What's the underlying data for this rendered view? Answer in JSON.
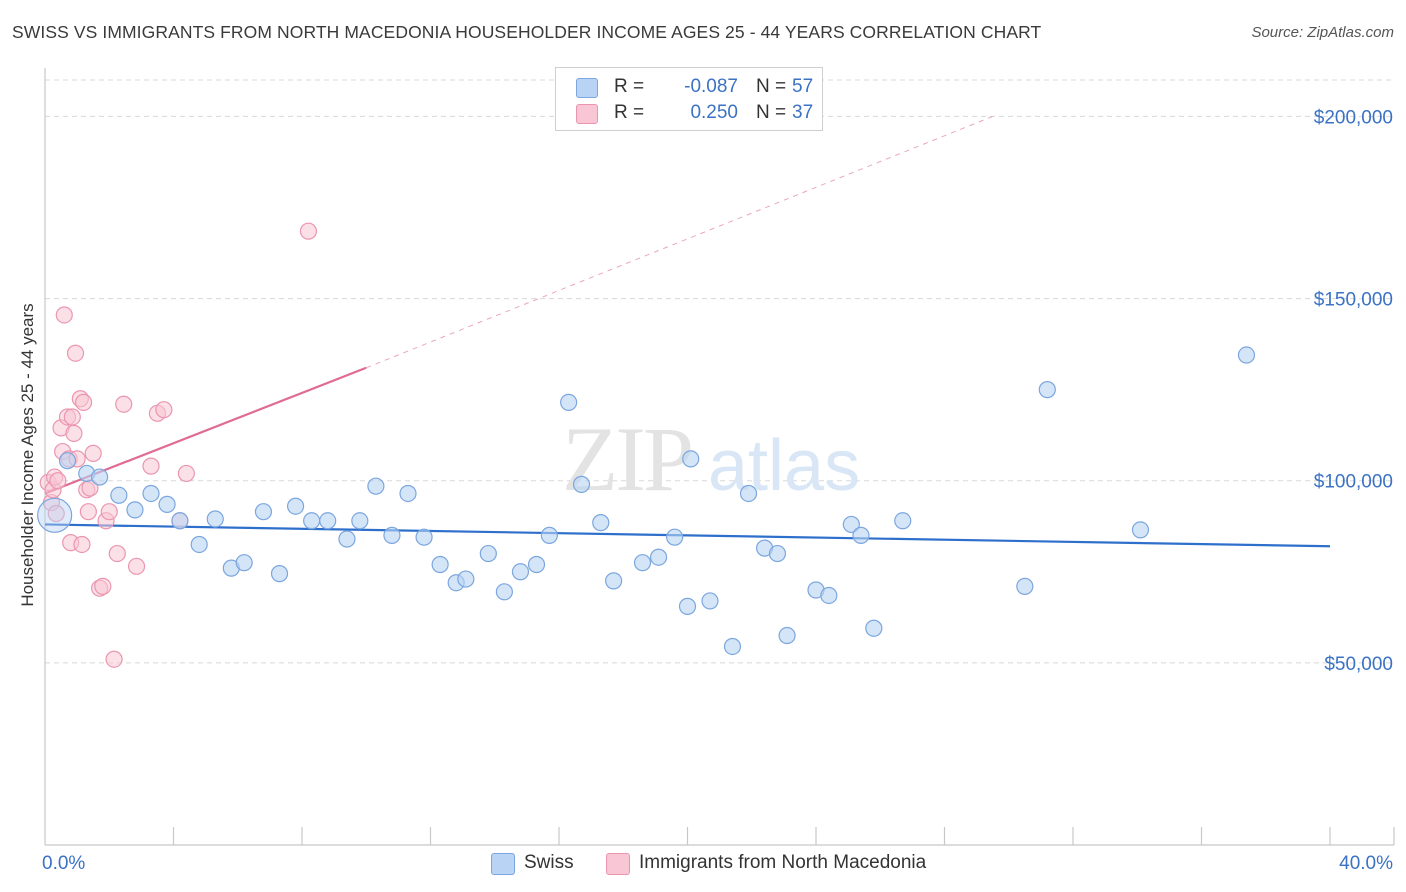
{
  "title": "SWISS VS IMMIGRANTS FROM NORTH MACEDONIA HOUSEHOLDER INCOME AGES 25 - 44 YEARS CORRELATION CHART",
  "source": "Source: ZipAtlas.com",
  "watermark": {
    "zip": "ZIP",
    "atlas": "atlas"
  },
  "legend": {
    "rows": [
      {
        "r_label": "R =",
        "r_value": "-0.087",
        "n_label": "N =",
        "n_value": "57"
      },
      {
        "r_label": "R =",
        "r_value": "0.250",
        "n_label": "N =",
        "n_value": "37"
      }
    ]
  },
  "bottom_legend": {
    "swiss": "Swiss",
    "macedonia": "Immigrants from North Macedonia"
  },
  "colors": {
    "swiss_fill": "#b9d3f4",
    "swiss_stroke": "#7ba6de",
    "swiss_line": "#2f6fcc",
    "mac_fill": "#f8c6d4",
    "mac_stroke": "#eb96b0",
    "mac_line": "#e06b95",
    "grid": "#d8d8d8",
    "axis_text": "#3b72c4"
  },
  "chart_data": {
    "type": "scatter",
    "title": "SWISS VS IMMIGRANTS FROM NORTH MACEDONIA HOUSEHOLDER INCOME AGES 25 - 44 YEARS CORRELATION CHART",
    "xlabel": "",
    "ylabel": "Householder Income Ages 25 - 44 years",
    "xlim": [
      0,
      40
    ],
    "ylim": [
      0,
      210000
    ],
    "y_ticks": [
      {
        "value": 50000,
        "label": "$50,000"
      },
      {
        "value": 100000,
        "label": "$100,000"
      },
      {
        "value": 150000,
        "label": "$150,000"
      },
      {
        "value": 200000,
        "label": "$200,000"
      }
    ],
    "x_tick_labels": [
      {
        "value": 0,
        "label": "0.0%"
      },
      {
        "value": 40,
        "label": "40.0%"
      }
    ],
    "x_minor_ticks": [
      4,
      8,
      12,
      16,
      20,
      24,
      28,
      32,
      36
    ],
    "series": [
      {
        "name": "Swiss",
        "r": -0.087,
        "n": 57,
        "trend": {
          "x0": 0,
          "y0": 88000,
          "x1": 40,
          "y1": 82000
        },
        "points": [
          {
            "x": 0.3,
            "y": 90500,
            "big": true
          },
          {
            "x": 0.7,
            "y": 105500
          },
          {
            "x": 1.3,
            "y": 102000
          },
          {
            "x": 1.7,
            "y": 101000
          },
          {
            "x": 2.3,
            "y": 96000
          },
          {
            "x": 2.8,
            "y": 92000
          },
          {
            "x": 3.3,
            "y": 96500
          },
          {
            "x": 3.8,
            "y": 93500
          },
          {
            "x": 4.2,
            "y": 89000
          },
          {
            "x": 4.8,
            "y": 82500
          },
          {
            "x": 5.3,
            "y": 89500
          },
          {
            "x": 5.8,
            "y": 76000
          },
          {
            "x": 6.2,
            "y": 77500
          },
          {
            "x": 6.8,
            "y": 91500
          },
          {
            "x": 7.3,
            "y": 74500
          },
          {
            "x": 7.8,
            "y": 93000
          },
          {
            "x": 8.3,
            "y": 89000
          },
          {
            "x": 8.8,
            "y": 89000
          },
          {
            "x": 9.4,
            "y": 84000
          },
          {
            "x": 9.8,
            "y": 89000
          },
          {
            "x": 10.3,
            "y": 98500
          },
          {
            "x": 10.8,
            "y": 85000
          },
          {
            "x": 11.3,
            "y": 96500
          },
          {
            "x": 11.8,
            "y": 84500
          },
          {
            "x": 12.3,
            "y": 77000
          },
          {
            "x": 12.8,
            "y": 72000
          },
          {
            "x": 13.1,
            "y": 73000
          },
          {
            "x": 13.8,
            "y": 80000
          },
          {
            "x": 14.3,
            "y": 69500
          },
          {
            "x": 14.8,
            "y": 75000
          },
          {
            "x": 15.3,
            "y": 77000
          },
          {
            "x": 15.7,
            "y": 85000
          },
          {
            "x": 16.3,
            "y": 121500
          },
          {
            "x": 16.7,
            "y": 99000
          },
          {
            "x": 17.3,
            "y": 88500
          },
          {
            "x": 17.7,
            "y": 72500
          },
          {
            "x": 18.6,
            "y": 77500
          },
          {
            "x": 19.1,
            "y": 79000
          },
          {
            "x": 19.6,
            "y": 84500
          },
          {
            "x": 20.0,
            "y": 65500
          },
          {
            "x": 20.1,
            "y": 106000
          },
          {
            "x": 20.7,
            "y": 67000
          },
          {
            "x": 21.4,
            "y": 54500
          },
          {
            "x": 21.9,
            "y": 96500
          },
          {
            "x": 22.4,
            "y": 81500
          },
          {
            "x": 22.8,
            "y": 80000
          },
          {
            "x": 23.1,
            "y": 57500
          },
          {
            "x": 24.0,
            "y": 70000
          },
          {
            "x": 24.4,
            "y": 68500
          },
          {
            "x": 25.1,
            "y": 88000
          },
          {
            "x": 25.4,
            "y": 85000
          },
          {
            "x": 25.8,
            "y": 59500
          },
          {
            "x": 26.7,
            "y": 89000
          },
          {
            "x": 30.5,
            "y": 71000
          },
          {
            "x": 31.2,
            "y": 125000
          },
          {
            "x": 34.1,
            "y": 86500
          },
          {
            "x": 37.4,
            "y": 134500
          }
        ]
      },
      {
        "name": "Immigrants from North Macedonia",
        "r": 0.25,
        "n": 37,
        "trend": {
          "x0": 0,
          "y0": 96500,
          "x1": 10,
          "y1": 131000,
          "dashed_to_x": 29.5,
          "dashed_to_y": 200000
        },
        "points": [
          {
            "x": 0.1,
            "y": 99500
          },
          {
            "x": 0.2,
            "y": 94000
          },
          {
            "x": 0.25,
            "y": 97500
          },
          {
            "x": 0.3,
            "y": 101000
          },
          {
            "x": 0.35,
            "y": 91000
          },
          {
            "x": 0.4,
            "y": 100000
          },
          {
            "x": 0.5,
            "y": 114500
          },
          {
            "x": 0.55,
            "y": 108000
          },
          {
            "x": 0.6,
            "y": 145500
          },
          {
            "x": 0.7,
            "y": 117500
          },
          {
            "x": 0.75,
            "y": 106000
          },
          {
            "x": 0.8,
            "y": 83000
          },
          {
            "x": 0.85,
            "y": 117500
          },
          {
            "x": 0.9,
            "y": 113000
          },
          {
            "x": 0.95,
            "y": 135000
          },
          {
            "x": 1.0,
            "y": 106000
          },
          {
            "x": 1.1,
            "y": 122500
          },
          {
            "x": 1.15,
            "y": 82500
          },
          {
            "x": 1.2,
            "y": 121500
          },
          {
            "x": 1.3,
            "y": 97500
          },
          {
            "x": 1.35,
            "y": 91500
          },
          {
            "x": 1.4,
            "y": 98000
          },
          {
            "x": 1.5,
            "y": 107500
          },
          {
            "x": 1.7,
            "y": 70500
          },
          {
            "x": 1.8,
            "y": 71000
          },
          {
            "x": 1.9,
            "y": 89000
          },
          {
            "x": 2.0,
            "y": 91500
          },
          {
            "x": 2.15,
            "y": 51000
          },
          {
            "x": 2.25,
            "y": 80000
          },
          {
            "x": 2.45,
            "y": 121000
          },
          {
            "x": 2.85,
            "y": 76500
          },
          {
            "x": 3.3,
            "y": 104000
          },
          {
            "x": 3.5,
            "y": 118500
          },
          {
            "x": 3.7,
            "y": 119500
          },
          {
            "x": 4.2,
            "y": 89000
          },
          {
            "x": 4.4,
            "y": 102000
          },
          {
            "x": 8.2,
            "y": 168500
          }
        ]
      }
    ]
  }
}
